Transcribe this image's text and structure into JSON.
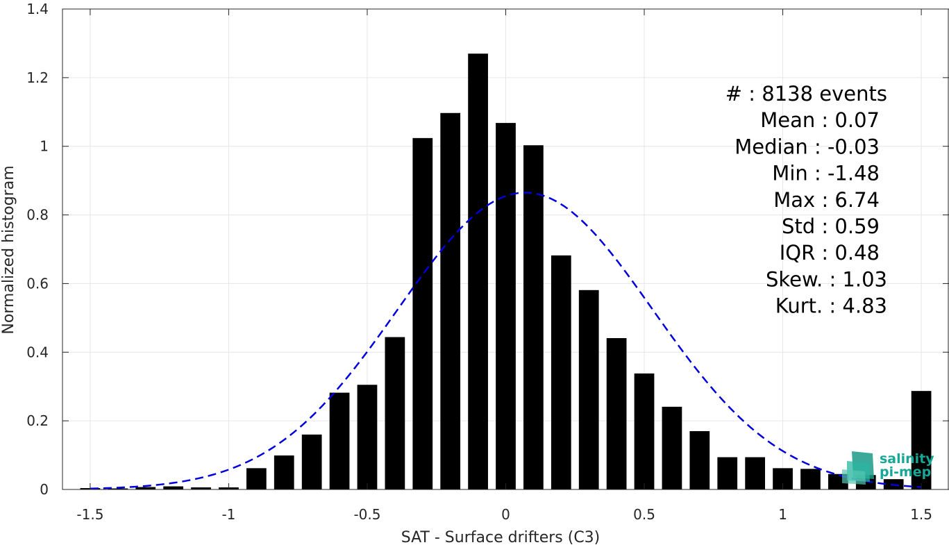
{
  "chart_data": {
    "type": "bar",
    "title": "",
    "xlabel": "SAT - Surface drifters (C3)",
    "ylabel": "Normalized histogram",
    "xlim": [
      -1.6,
      1.6
    ],
    "ylim": [
      0,
      1.4
    ],
    "grid": true,
    "x_ticks": [
      "-1.5",
      "-1",
      "-0.5",
      "0",
      "0.5",
      "1",
      "1.5"
    ],
    "y_ticks": [
      "0",
      "0.2",
      "0.4",
      "0.6",
      "0.8",
      "1",
      "1.2",
      "1.4"
    ],
    "bin_width": 0.1,
    "x": [
      -1.5,
      -1.4,
      -1.3,
      -1.2,
      -1.1,
      -1.0,
      -0.9,
      -0.8,
      -0.7,
      -0.6,
      -0.5,
      -0.4,
      -0.3,
      -0.2,
      -0.1,
      0.0,
      0.1,
      0.2,
      0.3,
      0.4,
      0.5,
      0.6,
      0.7,
      0.8,
      0.9,
      1.0,
      1.1,
      1.2,
      1.3,
      1.4,
      1.5
    ],
    "values": [
      0.004,
      0.003,
      0.007,
      0.009,
      0.006,
      0.006,
      0.062,
      0.099,
      0.16,
      0.282,
      0.305,
      0.444,
      1.024,
      1.097,
      1.27,
      1.068,
      1.003,
      0.682,
      0.581,
      0.441,
      0.338,
      0.241,
      0.17,
      0.094,
      0.094,
      0.062,
      0.06,
      0.045,
      0.042,
      0.03,
      0.287
    ],
    "bar_color": "#000000",
    "fit": {
      "name": "Gaussian fit",
      "mean": 0.07,
      "std": 0.46,
      "peak": 0.865,
      "x_range": [
        -1.5,
        1.5
      ],
      "color": "#0000dd",
      "style": "dashed"
    },
    "annotation_lines": [
      "#  : 8138 events",
      "Mean : 0.07",
      "Median : -0.03",
      "Min : -1.48",
      "Max : 6.74",
      "Std : 0.59",
      "IQR : 0.48",
      "Skew. : 1.03",
      "Kurt. : 4.83"
    ]
  },
  "logo": {
    "line1": "salinity",
    "line2": "pi-mep",
    "color": "#16a896"
  }
}
